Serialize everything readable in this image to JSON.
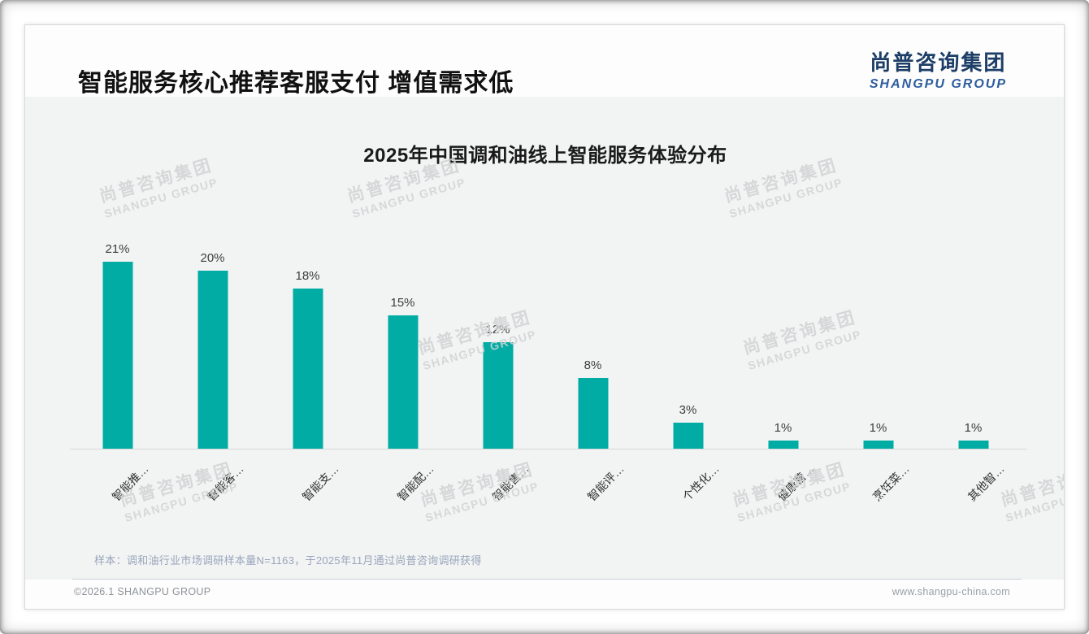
{
  "slide": {
    "title": "智能服务核心推荐客服支付 增值需求低",
    "logo": {
      "cn": "尚普咨询集团",
      "en": "SHANGPU GROUP"
    },
    "watermark": {
      "cn": "尚普咨询集团",
      "en": "SHANGPU GROUP"
    },
    "note": "样本：调和油行业市场调研样本量N=1163，于2025年11月通过尚普咨询调研获得",
    "footer": {
      "left": "©2026.1 SHANGPU GROUP",
      "right": "www.shangpu-china.com"
    },
    "brand_colors": {
      "navy": "#1D3E66",
      "blue": "#2E5D9F"
    }
  },
  "chart_data": {
    "type": "bar",
    "title": "2025年中国调和油线上智能服务体验分布",
    "categories": [
      "智能推…",
      "智能客…",
      "智能支…",
      "智能配…",
      "智能售…",
      "智能评…",
      "个性化…",
      "健康营…",
      "烹饪菜…",
      "其他智…"
    ],
    "values": [
      21,
      20,
      18,
      15,
      12,
      8,
      3,
      1,
      1,
      1
    ],
    "unit": "%",
    "bar_color": "#00ACA4",
    "value_label_color": "#3D3D3D",
    "ylim": [
      0,
      24
    ],
    "grid": false,
    "legend": false,
    "xlabel": "",
    "ylabel": ""
  }
}
